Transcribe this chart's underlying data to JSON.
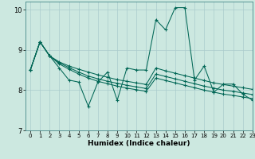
{
  "xlabel": "Humidex (Indice chaleur)",
  "xlim": [
    -0.5,
    23
  ],
  "ylim": [
    7,
    10.2
  ],
  "yticks": [
    7,
    8,
    9,
    10
  ],
  "xticks": [
    0,
    1,
    2,
    3,
    4,
    5,
    6,
    7,
    8,
    9,
    10,
    11,
    12,
    13,
    14,
    15,
    16,
    17,
    18,
    19,
    20,
    21,
    22,
    23
  ],
  "bg_color": "#cce8e0",
  "grid_color": "#aacccc",
  "line_color": "#006655",
  "series": {
    "line1_zigzag": [
      8.5,
      9.2,
      8.85,
      8.55,
      8.25,
      8.2,
      7.6,
      8.2,
      8.45,
      7.75,
      8.55,
      8.5,
      8.5,
      9.75,
      9.5,
      10.05,
      10.05,
      8.25,
      8.6,
      7.95,
      8.15,
      8.15,
      7.9,
      7.75
    ],
    "line2_upper": [
      8.5,
      9.2,
      8.85,
      8.7,
      8.6,
      8.52,
      8.45,
      8.38,
      8.32,
      8.26,
      8.22,
      8.18,
      8.14,
      8.55,
      8.48,
      8.42,
      8.36,
      8.3,
      8.24,
      8.18,
      8.14,
      8.1,
      8.06,
      8.02
    ],
    "line3_mid": [
      8.5,
      9.2,
      8.85,
      8.68,
      8.56,
      8.45,
      8.35,
      8.28,
      8.22,
      8.17,
      8.12,
      8.08,
      8.04,
      8.4,
      8.34,
      8.28,
      8.22,
      8.16,
      8.1,
      8.05,
      8.0,
      7.97,
      7.93,
      7.89
    ],
    "line4_lower": [
      8.5,
      9.2,
      8.85,
      8.65,
      8.52,
      8.4,
      8.3,
      8.22,
      8.16,
      8.1,
      8.05,
      8.01,
      7.97,
      8.3,
      8.24,
      8.18,
      8.12,
      8.06,
      8.0,
      7.95,
      7.9,
      7.87,
      7.83,
      7.79
    ]
  }
}
